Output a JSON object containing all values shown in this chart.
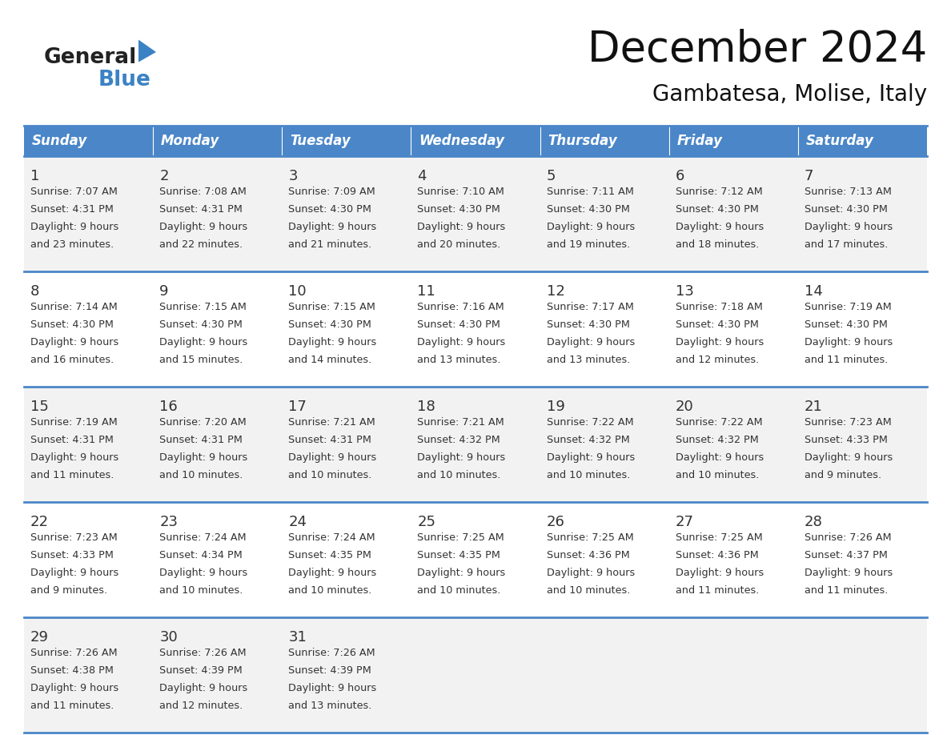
{
  "title": "December 2024",
  "subtitle": "Gambatesa, Molise, Italy",
  "header_color": "#4a86c8",
  "header_text_color": "#ffffff",
  "row_colors": [
    "#f2f2f2",
    "#ffffff"
  ],
  "border_color": "#4a86c8",
  "text_color": "#333333",
  "days_of_week": [
    "Sunday",
    "Monday",
    "Tuesday",
    "Wednesday",
    "Thursday",
    "Friday",
    "Saturday"
  ],
  "weeks": [
    [
      {
        "day": 1,
        "sunrise": "7:07 AM",
        "sunset": "4:31 PM",
        "daylight_hours": 9,
        "daylight_minutes": 23
      },
      {
        "day": 2,
        "sunrise": "7:08 AM",
        "sunset": "4:31 PM",
        "daylight_hours": 9,
        "daylight_minutes": 22
      },
      {
        "day": 3,
        "sunrise": "7:09 AM",
        "sunset": "4:30 PM",
        "daylight_hours": 9,
        "daylight_minutes": 21
      },
      {
        "day": 4,
        "sunrise": "7:10 AM",
        "sunset": "4:30 PM",
        "daylight_hours": 9,
        "daylight_minutes": 20
      },
      {
        "day": 5,
        "sunrise": "7:11 AM",
        "sunset": "4:30 PM",
        "daylight_hours": 9,
        "daylight_minutes": 19
      },
      {
        "day": 6,
        "sunrise": "7:12 AM",
        "sunset": "4:30 PM",
        "daylight_hours": 9,
        "daylight_minutes": 18
      },
      {
        "day": 7,
        "sunrise": "7:13 AM",
        "sunset": "4:30 PM",
        "daylight_hours": 9,
        "daylight_minutes": 17
      }
    ],
    [
      {
        "day": 8,
        "sunrise": "7:14 AM",
        "sunset": "4:30 PM",
        "daylight_hours": 9,
        "daylight_minutes": 16
      },
      {
        "day": 9,
        "sunrise": "7:15 AM",
        "sunset": "4:30 PM",
        "daylight_hours": 9,
        "daylight_minutes": 15
      },
      {
        "day": 10,
        "sunrise": "7:15 AM",
        "sunset": "4:30 PM",
        "daylight_hours": 9,
        "daylight_minutes": 14
      },
      {
        "day": 11,
        "sunrise": "7:16 AM",
        "sunset": "4:30 PM",
        "daylight_hours": 9,
        "daylight_minutes": 13
      },
      {
        "day": 12,
        "sunrise": "7:17 AM",
        "sunset": "4:30 PM",
        "daylight_hours": 9,
        "daylight_minutes": 13
      },
      {
        "day": 13,
        "sunrise": "7:18 AM",
        "sunset": "4:30 PM",
        "daylight_hours": 9,
        "daylight_minutes": 12
      },
      {
        "day": 14,
        "sunrise": "7:19 AM",
        "sunset": "4:30 PM",
        "daylight_hours": 9,
        "daylight_minutes": 11
      }
    ],
    [
      {
        "day": 15,
        "sunrise": "7:19 AM",
        "sunset": "4:31 PM",
        "daylight_hours": 9,
        "daylight_minutes": 11
      },
      {
        "day": 16,
        "sunrise": "7:20 AM",
        "sunset": "4:31 PM",
        "daylight_hours": 9,
        "daylight_minutes": 10
      },
      {
        "day": 17,
        "sunrise": "7:21 AM",
        "sunset": "4:31 PM",
        "daylight_hours": 9,
        "daylight_minutes": 10
      },
      {
        "day": 18,
        "sunrise": "7:21 AM",
        "sunset": "4:32 PM",
        "daylight_hours": 9,
        "daylight_minutes": 10
      },
      {
        "day": 19,
        "sunrise": "7:22 AM",
        "sunset": "4:32 PM",
        "daylight_hours": 9,
        "daylight_minutes": 10
      },
      {
        "day": 20,
        "sunrise": "7:22 AM",
        "sunset": "4:32 PM",
        "daylight_hours": 9,
        "daylight_minutes": 10
      },
      {
        "day": 21,
        "sunrise": "7:23 AM",
        "sunset": "4:33 PM",
        "daylight_hours": 9,
        "daylight_minutes": 9
      }
    ],
    [
      {
        "day": 22,
        "sunrise": "7:23 AM",
        "sunset": "4:33 PM",
        "daylight_hours": 9,
        "daylight_minutes": 9
      },
      {
        "day": 23,
        "sunrise": "7:24 AM",
        "sunset": "4:34 PM",
        "daylight_hours": 9,
        "daylight_minutes": 10
      },
      {
        "day": 24,
        "sunrise": "7:24 AM",
        "sunset": "4:35 PM",
        "daylight_hours": 9,
        "daylight_minutes": 10
      },
      {
        "day": 25,
        "sunrise": "7:25 AM",
        "sunset": "4:35 PM",
        "daylight_hours": 9,
        "daylight_minutes": 10
      },
      {
        "day": 26,
        "sunrise": "7:25 AM",
        "sunset": "4:36 PM",
        "daylight_hours": 9,
        "daylight_minutes": 10
      },
      {
        "day": 27,
        "sunrise": "7:25 AM",
        "sunset": "4:36 PM",
        "daylight_hours": 9,
        "daylight_minutes": 11
      },
      {
        "day": 28,
        "sunrise": "7:26 AM",
        "sunset": "4:37 PM",
        "daylight_hours": 9,
        "daylight_minutes": 11
      }
    ],
    [
      {
        "day": 29,
        "sunrise": "7:26 AM",
        "sunset": "4:38 PM",
        "daylight_hours": 9,
        "daylight_minutes": 11
      },
      {
        "day": 30,
        "sunrise": "7:26 AM",
        "sunset": "4:39 PM",
        "daylight_hours": 9,
        "daylight_minutes": 12
      },
      {
        "day": 31,
        "sunrise": "7:26 AM",
        "sunset": "4:39 PM",
        "daylight_hours": 9,
        "daylight_minutes": 13
      },
      null,
      null,
      null,
      null
    ]
  ]
}
